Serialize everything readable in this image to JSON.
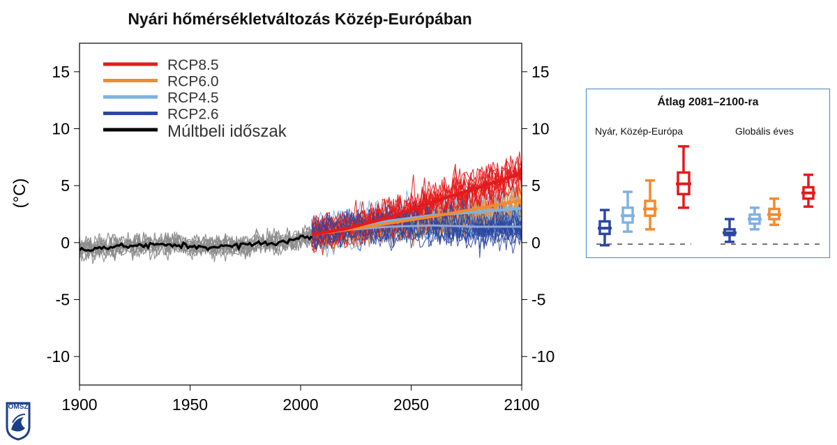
{
  "title": "Nyári hőmérsékletváltozás Közép-Európában",
  "colors": {
    "rcp85": "#e41a1c",
    "rcp60": "#f28a2e",
    "rcp45": "#7fb2e0",
    "rcp26": "#2c47a0",
    "past": "#000000",
    "past_members": "#8a8a8a",
    "inset_border": "#4a86b8"
  },
  "chart_data": [
    {
      "type": "line",
      "title": "Nyári hőmérsékletváltozás Közép-Európában",
      "xlabel": "",
      "ylabel": "(°C)",
      "xlim": [
        1900,
        2100
      ],
      "ylim": [
        -12.5,
        17.5
      ],
      "x_ticks": [
        "1900",
        "1950",
        "2000",
        "2050",
        "2100"
      ],
      "y_ticks": [
        "15",
        "10",
        "5",
        "0",
        "-5",
        "-10"
      ],
      "legend_position": "top-left",
      "legend": [
        "RCP8.5",
        "RCP6.0",
        "RCP4.5",
        "RCP2.6",
        "Múltbeli időszak"
      ],
      "series": [
        {
          "name": "Múltbeli időszak",
          "x": [
            1900,
            1920,
            1940,
            1960,
            1970,
            1980,
            1990,
            2000,
            2005
          ],
          "y": [
            -0.6,
            -0.3,
            -0.2,
            -0.4,
            -0.3,
            -0.1,
            0.0,
            0.4,
            0.5
          ]
        },
        {
          "name": "RCP8.5",
          "x": [
            2005,
            2020,
            2040,
            2060,
            2080,
            2100
          ],
          "y": [
            0.7,
            1.2,
            2.2,
            3.6,
            4.8,
            6.1
          ]
        },
        {
          "name": "RCP6.0",
          "x": [
            2005,
            2020,
            2040,
            2060,
            2080,
            2100
          ],
          "y": [
            0.7,
            1.1,
            1.7,
            2.3,
            3.0,
            3.7
          ]
        },
        {
          "name": "RCP4.5",
          "x": [
            2005,
            2020,
            2040,
            2060,
            2080,
            2100
          ],
          "y": [
            0.7,
            1.2,
            1.9,
            2.4,
            2.7,
            3.0
          ]
        },
        {
          "name": "RCP2.6",
          "x": [
            2005,
            2020,
            2040,
            2060,
            2080,
            2100
          ],
          "y": [
            0.7,
            1.1,
            1.4,
            1.5,
            1.4,
            1.4
          ]
        }
      ]
    },
    {
      "type": "box",
      "title": "Átlag 2081–2100-ra",
      "groups": [
        {
          "label": "Nyár, Közép-Európa",
          "boxes": [
            {
              "scenario": "RCP2.6",
              "min": -0.1,
              "q1": 0.9,
              "median": 1.4,
              "q3": 2.0,
              "max": 3.0
            },
            {
              "scenario": "RCP4.5",
              "min": 1.1,
              "q1": 1.9,
              "median": 2.5,
              "q3": 3.2,
              "max": 4.6
            },
            {
              "scenario": "RCP6.0",
              "min": 1.3,
              "q1": 2.5,
              "median": 3.1,
              "q3": 3.8,
              "max": 5.6
            },
            {
              "scenario": "RCP8.5",
              "min": 3.2,
              "q1": 4.4,
              "median": 5.3,
              "q3": 6.3,
              "max": 8.6
            }
          ]
        },
        {
          "label": "Globális éves",
          "boxes": [
            {
              "scenario": "RCP2.6",
              "min": 0.2,
              "q1": 0.8,
              "median": 1.0,
              "q3": 1.3,
              "max": 2.2
            },
            {
              "scenario": "RCP4.5",
              "min": 1.3,
              "q1": 1.8,
              "median": 2.2,
              "q3": 2.6,
              "max": 3.2
            },
            {
              "scenario": "RCP6.0",
              "min": 1.7,
              "q1": 2.2,
              "median": 2.6,
              "q3": 3.1,
              "max": 4.0
            },
            {
              "scenario": "RCP8.5",
              "min": 3.3,
              "q1": 4.0,
              "median": 4.5,
              "q3": 5.0,
              "max": 6.1
            }
          ]
        }
      ]
    }
  ],
  "logo": {
    "text": "OMSZ"
  }
}
